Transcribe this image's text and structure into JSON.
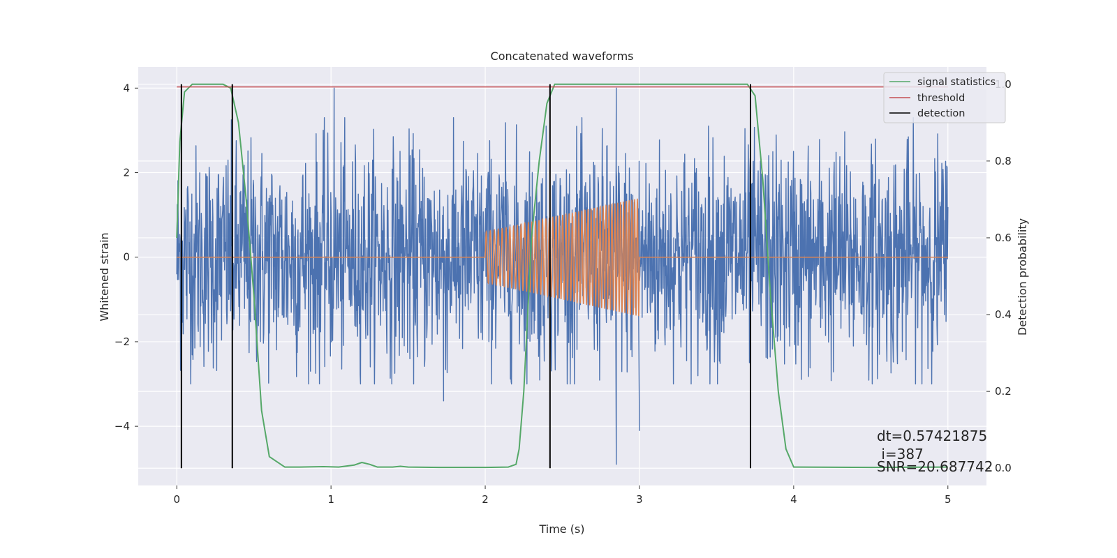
{
  "chart_data": {
    "type": "line",
    "title": "Concatenated waveforms",
    "xlabel": "Time (s)",
    "ylabel_left": "Whitened strain",
    "ylabel_right": "Detection probability",
    "xlim": [
      -0.25,
      5.25
    ],
    "ylim_left": [
      -5.4,
      4.5
    ],
    "ylim_right": [
      -0.045,
      1.045
    ],
    "x_ticks": [
      0,
      1,
      2,
      3,
      4,
      5
    ],
    "y_ticks_left": [
      -4,
      -2,
      0,
      2,
      4
    ],
    "y_ticks_right": [
      0.0,
      0.2,
      0.4,
      0.6,
      0.8,
      1.0
    ],
    "y_tick_labels_left": [
      "−4",
      "−2",
      "0",
      "2",
      "4"
    ],
    "y_tick_labels_right": [
      "0.0",
      "0.2",
      "0.4",
      "0.6",
      "0.8",
      "1.0"
    ],
    "grid": true,
    "legend_position": "top-right",
    "annotations": [
      "dt=0.57421875",
      " i=387",
      "SNR=20.687742"
    ],
    "series": [
      {
        "kind": "whitened-strain",
        "axis": "left",
        "color": "#4c72b0",
        "x_range": [
          0,
          5
        ],
        "typical_amplitude": 1.3,
        "peak_values": [
          [
            1.02,
            4.0
          ],
          [
            2.85,
            4.0
          ],
          [
            2.85,
            -4.9
          ],
          [
            3.0,
            -4.1
          ],
          [
            1.73,
            -3.4
          ]
        ]
      },
      {
        "kind": "injected-signal",
        "axis": "left",
        "color": "#dd8452",
        "x_range": [
          0,
          5
        ],
        "chirp_x_range": [
          2.0,
          3.0
        ],
        "amplitude_start": 0.6,
        "amplitude_end": 1.4,
        "cycles": 47
      },
      {
        "name": "signal statistics",
        "axis": "right",
        "color": "#55a868",
        "x": [
          0,
          0.02,
          0.05,
          0.1,
          0.2,
          0.3,
          0.35,
          0.4,
          0.45,
          0.5,
          0.55,
          0.6,
          0.7,
          0.8,
          0.95,
          1.05,
          1.15,
          1.2,
          1.25,
          1.3,
          1.4,
          1.45,
          1.5,
          1.7,
          2.0,
          2.15,
          2.2,
          2.22,
          2.25,
          2.3,
          2.35,
          2.4,
          2.45,
          2.5,
          2.6,
          3.0,
          3.5,
          3.7,
          3.75,
          3.8,
          3.85,
          3.9,
          3.95,
          4.0,
          4.5,
          5.0
        ],
        "values": [
          0.6,
          0.85,
          0.98,
          1.0,
          1.0,
          1.0,
          0.99,
          0.9,
          0.7,
          0.45,
          0.15,
          0.03,
          0.003,
          0.003,
          0.004,
          0.003,
          0.008,
          0.015,
          0.01,
          0.003,
          0.003,
          0.005,
          0.003,
          0.002,
          0.002,
          0.003,
          0.01,
          0.05,
          0.2,
          0.6,
          0.8,
          0.95,
          1.0,
          1.0,
          1.0,
          1.0,
          1.0,
          1.0,
          0.97,
          0.75,
          0.45,
          0.2,
          0.05,
          0.003,
          0.002,
          0.003
        ]
      },
      {
        "name": "threshold",
        "axis": "right",
        "color": "#c44e52",
        "x": [
          0,
          5
        ],
        "values": [
          0.993,
          0.993
        ]
      },
      {
        "name": "detection",
        "axis": "right",
        "color": "#000000",
        "x": [
          0.03,
          0.36,
          2.42,
          3.72
        ],
        "values": [
          [
            0,
            1.0
          ],
          [
            0,
            1.0
          ],
          [
            0,
            1.0
          ],
          [
            0,
            1.0
          ]
        ]
      }
    ]
  }
}
